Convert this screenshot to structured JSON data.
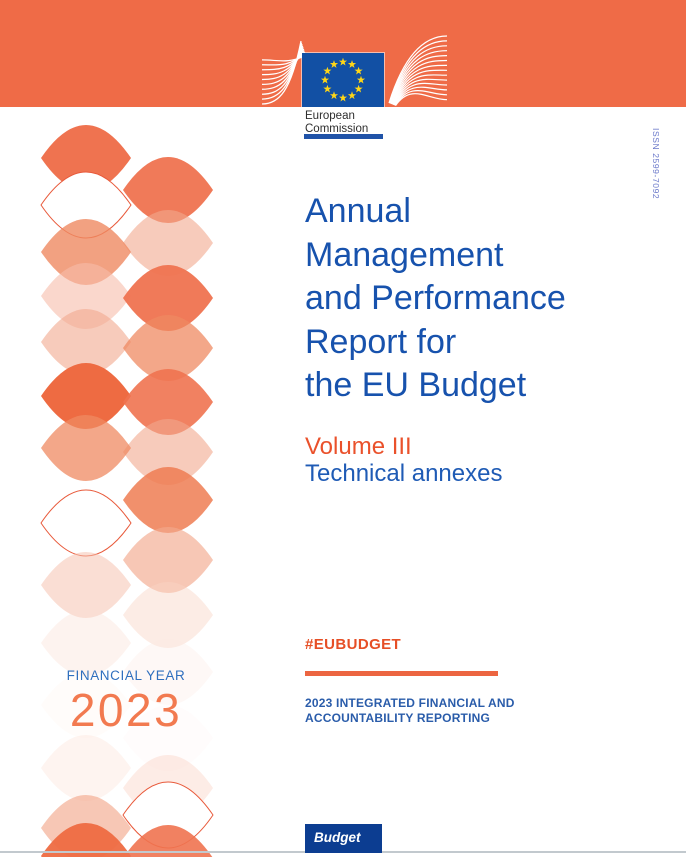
{
  "masthead": {
    "institution": [
      "European",
      "Commission"
    ]
  },
  "issn": "ISSN 2599-7092",
  "title_lines": [
    "Annual",
    "Management",
    "and Performance",
    "Report for",
    "the EU Budget"
  ],
  "volume": "Volume III",
  "subtitle": "Technical annexes",
  "hashtag": "#EUBUDGET",
  "series_lines": [
    "2023 INTEGRATED FINANCIAL AND",
    "ACCOUNTABILITY REPORTING"
  ],
  "financial_year": {
    "label": "FINANCIAL YEAR",
    "year": "2023"
  },
  "collection": "Budget",
  "colors": {
    "band_orange": "#ef6b47",
    "title_blue": "#1752ad",
    "volume_orange": "#ea512b",
    "subtitle_blue": "#1f5bb5",
    "hashtag_orange": "#e64f26",
    "series_blue": "#2a5caa",
    "financial_year_blue": "#2f6fbe",
    "year_orange": "#f27a50",
    "budget_box_blue": "#0c3d91",
    "flag_blue": "#1250a4",
    "star_yellow": "#ffd617",
    "issn_blue": "#6b79ca",
    "ribbon_orange": "#ef7350"
  }
}
